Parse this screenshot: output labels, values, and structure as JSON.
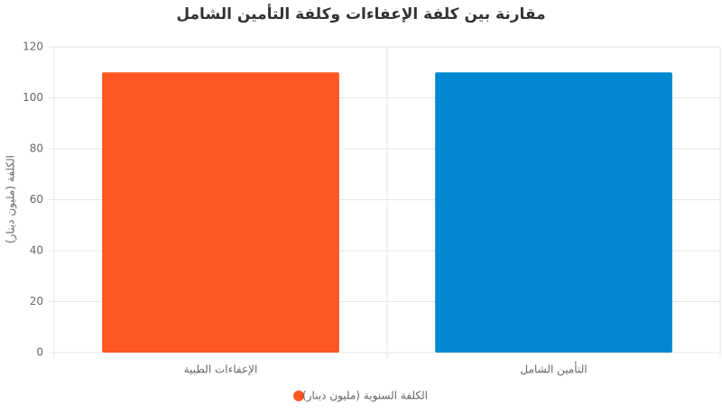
{
  "chart_data": {
    "type": "bar",
    "title": "مقارنة بين كلفة الإعفاءات وكلفة التأمين الشامل",
    "y_label": "الكلفة (مليون دينار)",
    "categories": [
      "الإعفاءات الطبية",
      "التأمين الشامل"
    ],
    "series": [
      {
        "name": "الكلفة السنوية (مليون دينار)",
        "colors": [
          "#ff5722",
          "#0288d1"
        ],
        "values": [
          110,
          110
        ]
      }
    ],
    "ylim": [
      0,
      120
    ],
    "yticks": [
      0,
      20,
      40,
      60,
      80,
      100,
      120
    ],
    "grid": true
  }
}
